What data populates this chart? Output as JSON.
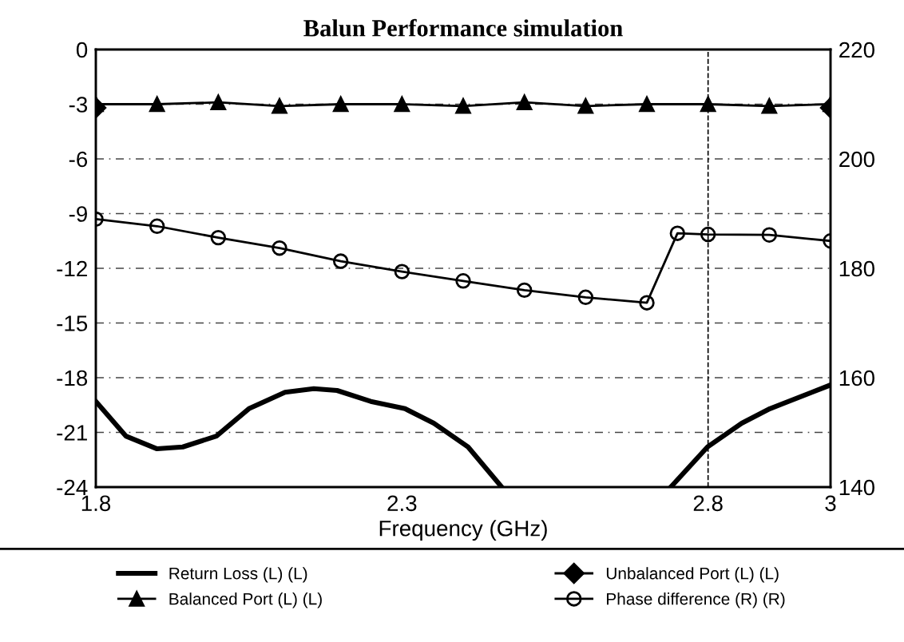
{
  "chart_data": {
    "type": "line",
    "title": "Balun Performance simulation",
    "xlabel": "Frequency (GHz)",
    "xlim": [
      1.8,
      3
    ],
    "xticks": [
      1.8,
      2.3,
      2.8,
      3
    ],
    "ylim": [
      -24,
      0
    ],
    "yticks": [
      0,
      -3,
      -6,
      -9,
      -12,
      -15,
      -18,
      -21,
      -24
    ],
    "y2lim": [
      140,
      220
    ],
    "y2ticks": [
      140,
      160,
      180,
      200,
      220
    ],
    "grid": "y",
    "legend": "bottom",
    "line_style": "solid",
    "ref_lines": [
      {
        "axis": "x",
        "value": 2.8,
        "line_style": "dashed",
        "color": "#000000"
      }
    ],
    "series": [
      {
        "name": "Return Loss (L) (L)",
        "color": "#000000",
        "marker": "none",
        "x": [
          1.8,
          1.849,
          1.9,
          1.942,
          1.997,
          2.05,
          2.109,
          2.156,
          2.194,
          2.249,
          2.305,
          2.352,
          2.408,
          2.463,
          2.6,
          2.739,
          2.799,
          2.855,
          2.901,
          3.0
        ],
        "values": [
          -19.3,
          -21.2,
          -21.9,
          -21.8,
          -21.2,
          -19.7,
          -18.8,
          -18.6,
          -18.7,
          -19.3,
          -19.7,
          -20.5,
          -21.8,
          -24,
          null,
          -24,
          -21.8,
          -20.5,
          -19.7,
          -18.4
        ]
      },
      {
        "name": "Unbalanced Port (L) (L)",
        "color": "#000000",
        "marker": "diamond",
        "x": [
          1.8,
          1.9,
          2.0,
          2.1,
          2.2,
          2.3,
          2.4,
          2.5,
          2.6,
          2.7,
          2.8,
          2.9,
          3.0
        ],
        "values": [
          -3.2,
          null,
          null,
          null,
          null,
          null,
          null,
          null,
          null,
          null,
          null,
          null,
          -3.2
        ]
      },
      {
        "name": "Balanced Port (L) (L)",
        "color": "#000000",
        "marker": "triangle",
        "x": [
          1.8,
          1.9,
          2.0,
          2.1,
          2.2,
          2.3,
          2.4,
          2.5,
          2.6,
          2.7,
          2.8,
          2.9,
          3.0
        ],
        "values": [
          -3.0,
          -3.0,
          -2.9,
          -3.1,
          -3.0,
          -3.0,
          -3.1,
          -2.9,
          -3.1,
          -3.0,
          -3.0,
          -3.1,
          -3.0
        ]
      },
      {
        "name": "Phase difference (R) (R)",
        "color": "#000000",
        "marker": "circle",
        "axis": "y2",
        "x": [
          1.8,
          1.9,
          2.0,
          2.1,
          2.2,
          2.3,
          2.4,
          2.5,
          2.6,
          2.7,
          2.75,
          2.8,
          2.9,
          3.0
        ],
        "values": [
          189.0,
          187.7,
          185.6,
          183.7,
          181.3,
          179.4,
          177.7,
          176.0,
          174.7,
          173.7,
          186.4,
          186.2,
          186.1,
          185.0
        ]
      }
    ]
  }
}
